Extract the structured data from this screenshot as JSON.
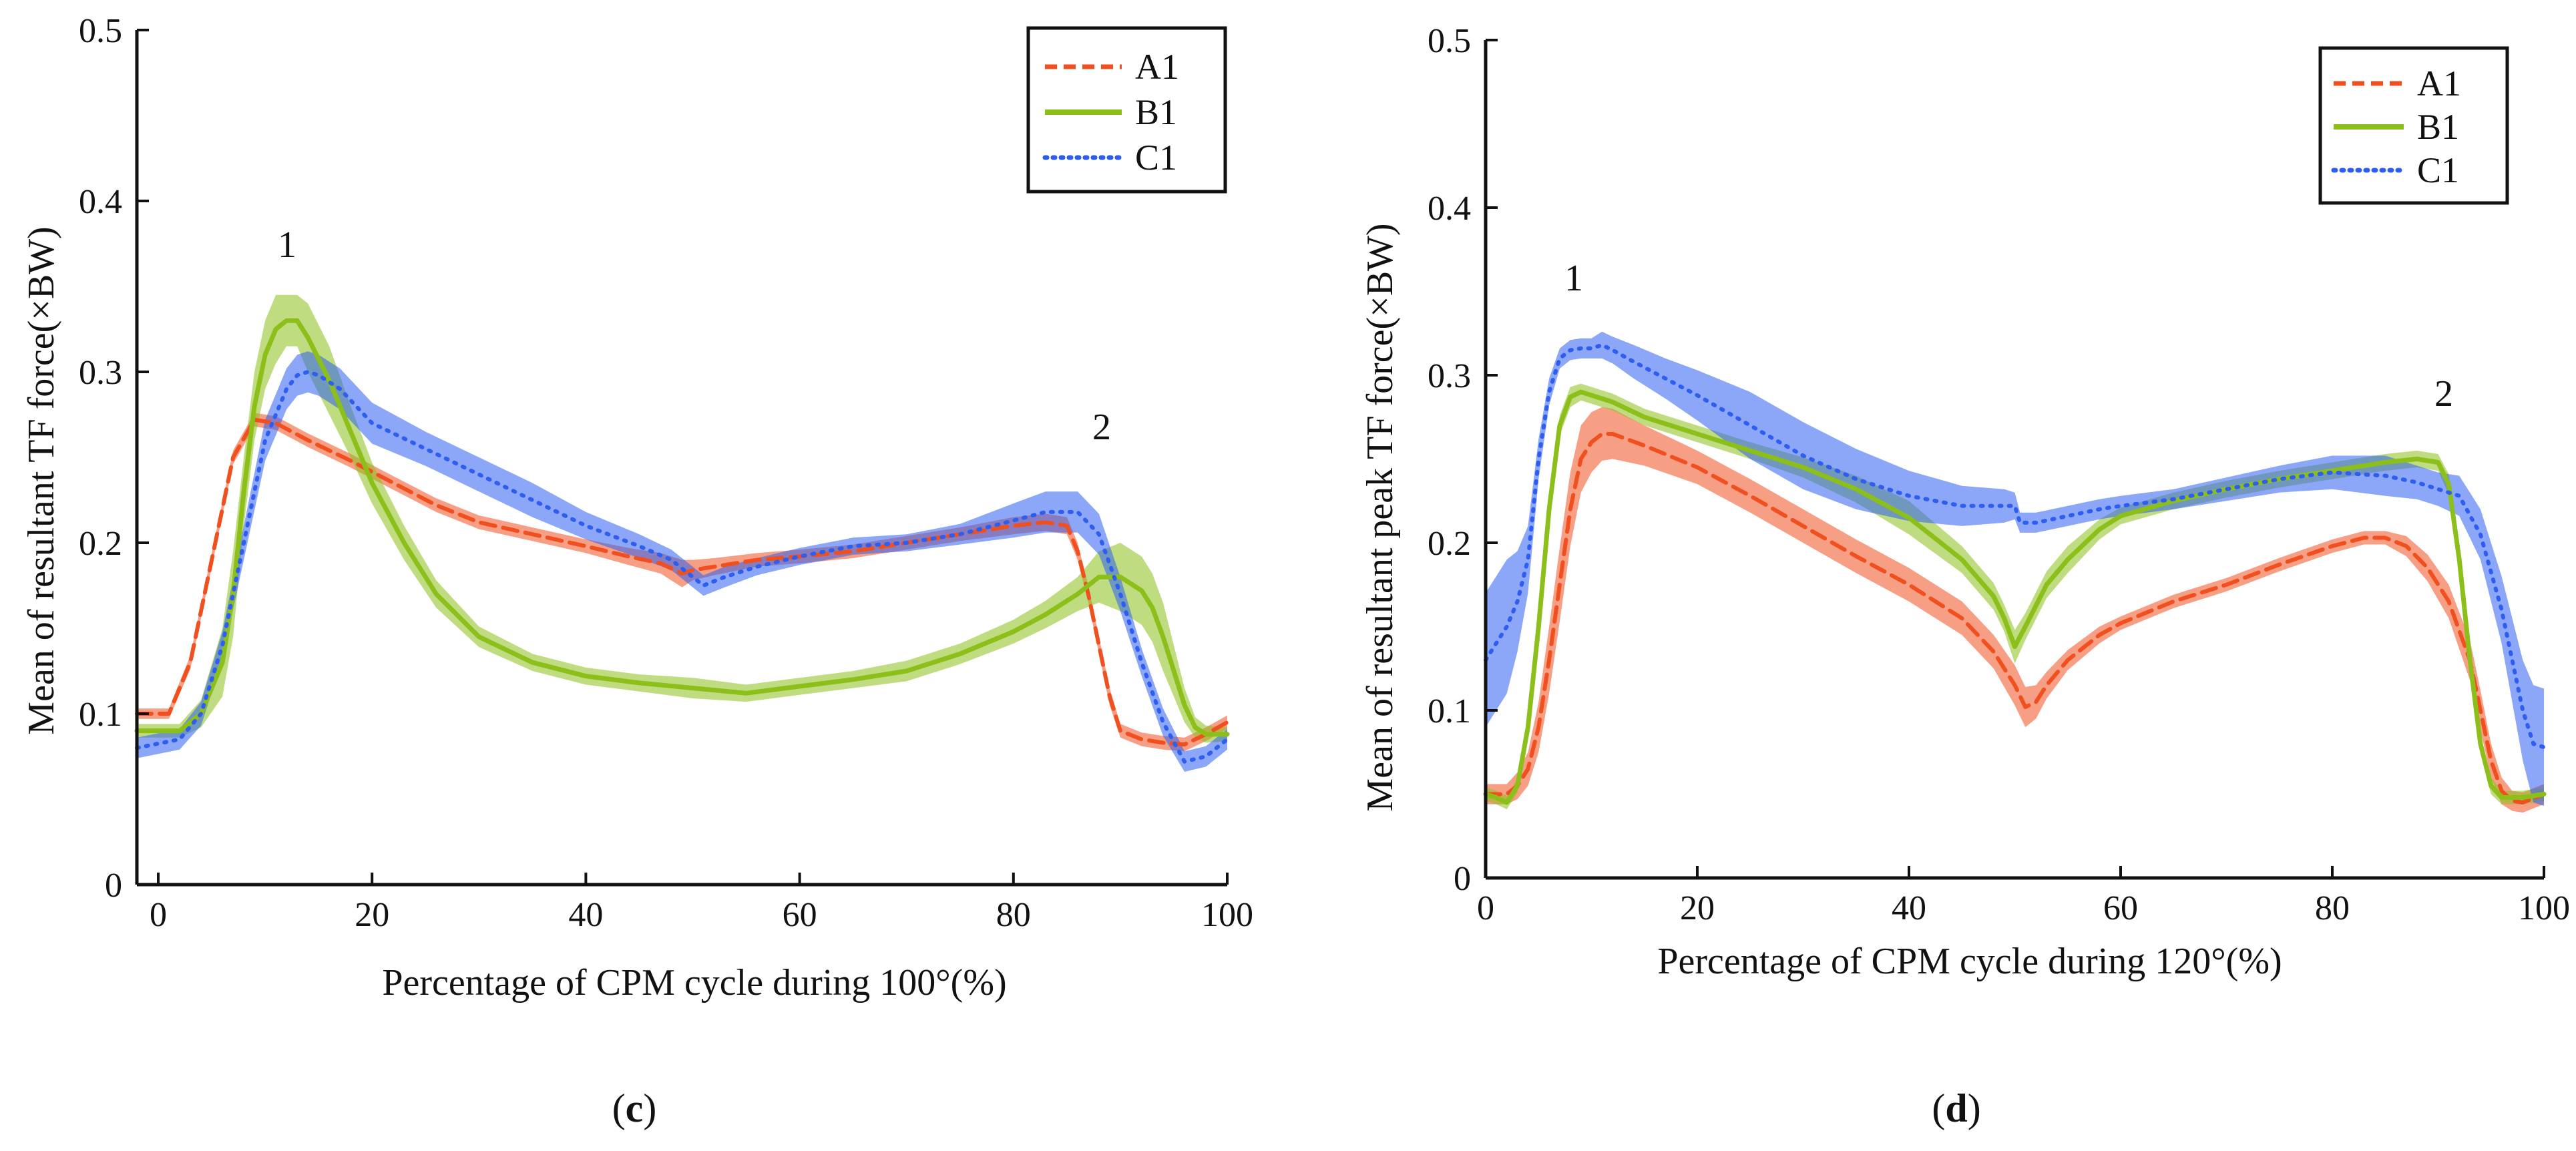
{
  "chart_data": [
    {
      "type": "line",
      "panel_label": "c",
      "xlabel": "Percentage of CPM cycle during 100°(%)",
      "ylabel": "Mean of resultant TF force(×BW)",
      "xlim": [
        -2,
        100
      ],
      "ylim": [
        0,
        0.5
      ],
      "x_ticks": [
        0,
        20,
        40,
        60,
        80,
        100
      ],
      "y_ticks": [
        0,
        0.1,
        0.2,
        0.3,
        0.4,
        0.5
      ],
      "y_tick_labels": [
        "0",
        "0.1",
        "0.2",
        "0.3",
        "0.4",
        "0.5"
      ],
      "legend_position": "top-right",
      "annotations": [
        {
          "text": "1",
          "x": 12,
          "y": 0.36
        },
        {
          "text": "2",
          "x": 89,
          "y": 0.24
        }
      ],
      "series": [
        {
          "name": "A1",
          "color": "#f05020",
          "style": "dashed",
          "x": [
            -2,
            1,
            3,
            5,
            7,
            9,
            11,
            14,
            18,
            22,
            26,
            30,
            35,
            40,
            44,
            47,
            49,
            50,
            52,
            56,
            60,
            65,
            70,
            75,
            80,
            83,
            85,
            86,
            87,
            88,
            89,
            90,
            92,
            94,
            96,
            98,
            100
          ],
          "y": [
            0.1,
            0.1,
            0.13,
            0.19,
            0.25,
            0.272,
            0.27,
            0.26,
            0.248,
            0.235,
            0.222,
            0.212,
            0.205,
            0.198,
            0.192,
            0.188,
            0.182,
            0.184,
            0.186,
            0.19,
            0.192,
            0.195,
            0.2,
            0.205,
            0.21,
            0.212,
            0.21,
            0.195,
            0.17,
            0.14,
            0.11,
            0.09,
            0.085,
            0.083,
            0.082,
            0.088,
            0.095
          ],
          "band": [
            0.003,
            0.003,
            0.004,
            0.004,
            0.004,
            0.004,
            0.004,
            0.004,
            0.004,
            0.004,
            0.004,
            0.004,
            0.004,
            0.004,
            0.005,
            0.006,
            0.008,
            0.006,
            0.005,
            0.004,
            0.004,
            0.004,
            0.004,
            0.004,
            0.005,
            0.005,
            0.005,
            0.005,
            0.005,
            0.005,
            0.005,
            0.004,
            0.004,
            0.004,
            0.004,
            0.004,
            0.004
          ]
        },
        {
          "name": "B1",
          "color": "#8cbf1a",
          "style": "solid",
          "x": [
            -2,
            2,
            4,
            6,
            7,
            8,
            9,
            10,
            11,
            12,
            13,
            14,
            16,
            18,
            20,
            23,
            26,
            30,
            35,
            40,
            45,
            50,
            55,
            60,
            65,
            70,
            75,
            80,
            83,
            86,
            88,
            90,
            92,
            93,
            94,
            95,
            96,
            97,
            98,
            100
          ],
          "y": [
            0.09,
            0.09,
            0.1,
            0.13,
            0.17,
            0.23,
            0.28,
            0.31,
            0.325,
            0.33,
            0.33,
            0.32,
            0.295,
            0.265,
            0.235,
            0.2,
            0.17,
            0.145,
            0.13,
            0.122,
            0.118,
            0.115,
            0.112,
            0.116,
            0.12,
            0.125,
            0.135,
            0.148,
            0.158,
            0.17,
            0.18,
            0.18,
            0.172,
            0.162,
            0.145,
            0.125,
            0.105,
            0.092,
            0.088,
            0.088
          ],
          "band": [
            0.004,
            0.004,
            0.008,
            0.02,
            0.025,
            0.02,
            0.02,
            0.02,
            0.02,
            0.015,
            0.015,
            0.02,
            0.02,
            0.015,
            0.012,
            0.01,
            0.008,
            0.006,
            0.005,
            0.005,
            0.005,
            0.006,
            0.005,
            0.005,
            0.005,
            0.006,
            0.006,
            0.007,
            0.008,
            0.01,
            0.015,
            0.02,
            0.02,
            0.02,
            0.02,
            0.015,
            0.01,
            0.006,
            0.005,
            0.004
          ]
        },
        {
          "name": "C1",
          "color": "#2e5ef0",
          "style": "dotted",
          "x": [
            -2,
            2,
            4,
            6,
            8,
            10,
            12,
            13,
            14,
            15,
            17,
            20,
            25,
            30,
            35,
            40,
            45,
            48,
            50,
            51,
            53,
            56,
            60,
            65,
            70,
            75,
            80,
            83,
            86,
            88,
            90,
            92,
            94,
            96,
            98,
            100
          ],
          "y": [
            0.08,
            0.085,
            0.1,
            0.14,
            0.2,
            0.26,
            0.29,
            0.298,
            0.3,
            0.298,
            0.29,
            0.27,
            0.255,
            0.24,
            0.225,
            0.21,
            0.198,
            0.19,
            0.18,
            0.175,
            0.18,
            0.186,
            0.192,
            0.198,
            0.2,
            0.205,
            0.213,
            0.218,
            0.218,
            0.205,
            0.17,
            0.13,
            0.095,
            0.072,
            0.075,
            0.085
          ],
          "band": [
            0.006,
            0.006,
            0.007,
            0.008,
            0.01,
            0.012,
            0.012,
            0.012,
            0.012,
            0.012,
            0.012,
            0.012,
            0.01,
            0.01,
            0.01,
            0.008,
            0.007,
            0.006,
            0.006,
            0.006,
            0.006,
            0.005,
            0.005,
            0.005,
            0.005,
            0.006,
            0.01,
            0.012,
            0.012,
            0.012,
            0.01,
            0.008,
            0.008,
            0.006,
            0.006,
            0.006
          ]
        }
      ]
    },
    {
      "type": "line",
      "panel_label": "d",
      "xlabel": "Percentage of CPM cycle during 120°(%)",
      "ylabel": "Mean of resultant peak TF force(×BW)",
      "xlim": [
        0,
        100
      ],
      "ylim": [
        0,
        0.5
      ],
      "x_ticks": [
        0,
        20,
        40,
        60,
        80,
        100
      ],
      "y_ticks": [
        0,
        0.1,
        0.2,
        0.3,
        0.4,
        0.5
      ],
      "y_tick_labels": [
        "0",
        "0.1",
        "0.2",
        "0.3",
        "0.4",
        "0.5"
      ],
      "legend_position": "top-right",
      "annotations": [
        {
          "text": "1",
          "x": 8,
          "y": 0.335
        },
        {
          "text": "2",
          "x": 90,
          "y": 0.27
        }
      ],
      "series": [
        {
          "name": "A1",
          "color": "#f05020",
          "style": "dashed",
          "x": [
            0,
            1,
            2,
            3,
            4,
            5,
            6,
            7,
            8,
            9,
            10,
            11,
            12,
            15,
            20,
            25,
            30,
            35,
            40,
            45,
            48,
            50,
            51,
            52,
            53,
            55,
            58,
            60,
            65,
            70,
            75,
            80,
            83,
            85,
            87,
            89,
            91,
            93,
            94,
            95,
            96,
            97,
            98,
            100
          ],
          "y": [
            0.05,
            0.05,
            0.05,
            0.055,
            0.065,
            0.09,
            0.13,
            0.175,
            0.22,
            0.25,
            0.26,
            0.265,
            0.265,
            0.258,
            0.245,
            0.228,
            0.21,
            0.192,
            0.175,
            0.155,
            0.135,
            0.115,
            0.102,
            0.105,
            0.115,
            0.13,
            0.145,
            0.152,
            0.165,
            0.175,
            0.187,
            0.198,
            0.203,
            0.203,
            0.198,
            0.185,
            0.165,
            0.13,
            0.1,
            0.07,
            0.052,
            0.046,
            0.045,
            0.05
          ],
          "band": [
            0.006,
            0.006,
            0.006,
            0.008,
            0.01,
            0.015,
            0.02,
            0.022,
            0.022,
            0.02,
            0.018,
            0.016,
            0.015,
            0.012,
            0.01,
            0.01,
            0.01,
            0.01,
            0.01,
            0.01,
            0.01,
            0.012,
            0.012,
            0.01,
            0.008,
            0.006,
            0.005,
            0.004,
            0.004,
            0.004,
            0.004,
            0.004,
            0.004,
            0.004,
            0.006,
            0.008,
            0.01,
            0.012,
            0.012,
            0.01,
            0.008,
            0.006,
            0.006,
            0.006
          ]
        },
        {
          "name": "B1",
          "color": "#8cbf1a",
          "style": "solid",
          "x": [
            0,
            1,
            2,
            3,
            4,
            5,
            6,
            7,
            8,
            9,
            10,
            12,
            15,
            20,
            25,
            30,
            35,
            40,
            45,
            48,
            49,
            50,
            51,
            53,
            55,
            58,
            60,
            65,
            70,
            75,
            80,
            85,
            88,
            90,
            91,
            92,
            93,
            94,
            95,
            96,
            98,
            100
          ],
          "y": [
            0.05,
            0.048,
            0.045,
            0.055,
            0.09,
            0.15,
            0.22,
            0.27,
            0.287,
            0.29,
            0.288,
            0.284,
            0.275,
            0.265,
            0.255,
            0.245,
            0.232,
            0.215,
            0.19,
            0.168,
            0.155,
            0.138,
            0.15,
            0.175,
            0.19,
            0.208,
            0.216,
            0.225,
            0.232,
            0.238,
            0.243,
            0.248,
            0.25,
            0.248,
            0.235,
            0.19,
            0.13,
            0.08,
            0.055,
            0.048,
            0.048,
            0.05
          ],
          "band": [
            0.004,
            0.004,
            0.004,
            0.004,
            0.005,
            0.006,
            0.006,
            0.006,
            0.006,
            0.005,
            0.005,
            0.005,
            0.005,
            0.005,
            0.005,
            0.006,
            0.008,
            0.01,
            0.008,
            0.008,
            0.008,
            0.01,
            0.008,
            0.008,
            0.008,
            0.006,
            0.005,
            0.005,
            0.005,
            0.005,
            0.005,
            0.005,
            0.005,
            0.005,
            0.006,
            0.008,
            0.008,
            0.006,
            0.005,
            0.004,
            0.004,
            0.004
          ]
        },
        {
          "name": "C1",
          "color": "#2e5ef0",
          "style": "dotted",
          "x": [
            0,
            1,
            2,
            3,
            4,
            5,
            6,
            7,
            8,
            9,
            10,
            11,
            12,
            14,
            17,
            20,
            25,
            30,
            35,
            40,
            45,
            49,
            50,
            50.5,
            52,
            55,
            58,
            60,
            65,
            70,
            75,
            80,
            85,
            88,
            90,
            92,
            94,
            96,
            98,
            99,
            100
          ],
          "y": [
            0.13,
            0.14,
            0.15,
            0.165,
            0.19,
            0.25,
            0.29,
            0.31,
            0.315,
            0.316,
            0.316,
            0.318,
            0.315,
            0.308,
            0.298,
            0.288,
            0.27,
            0.252,
            0.238,
            0.228,
            0.222,
            0.222,
            0.222,
            0.212,
            0.212,
            0.216,
            0.22,
            0.222,
            0.226,
            0.232,
            0.238,
            0.242,
            0.24,
            0.236,
            0.232,
            0.228,
            0.205,
            0.16,
            0.1,
            0.08,
            0.078
          ],
          "band": [
            0.04,
            0.04,
            0.04,
            0.03,
            0.02,
            0.012,
            0.008,
            0.006,
            0.006,
            0.006,
            0.006,
            0.008,
            0.008,
            0.01,
            0.012,
            0.015,
            0.02,
            0.02,
            0.018,
            0.015,
            0.012,
            0.01,
            0.008,
            0.006,
            0.006,
            0.006,
            0.006,
            0.006,
            0.006,
            0.007,
            0.008,
            0.01,
            0.012,
            0.01,
            0.01,
            0.012,
            0.015,
            0.02,
            0.03,
            0.035,
            0.035
          ]
        }
      ]
    }
  ]
}
